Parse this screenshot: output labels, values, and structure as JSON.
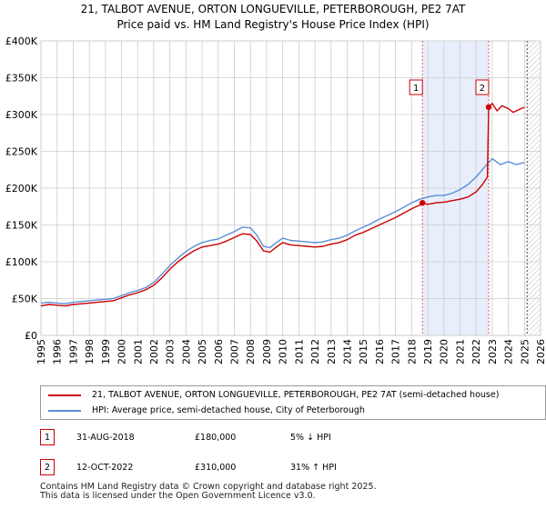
{
  "page_title_line1": "21, TALBOT AVENUE, ORTON LONGUEVILLE, PETERBOROUGH, PE2 7AT",
  "page_title_line2": "Price paid vs. HM Land Registry's House Price Index (HPI)",
  "colors": {
    "property_line": "#cc0000",
    "hpi_line": "#5b8ed6",
    "shade": "#e8eefb",
    "marker_border": "#cc0000",
    "grid": "#cccccc"
  },
  "chart_data": {
    "type": "line",
    "title": "21, TALBOT AVENUE, ORTON LONGUEVILLE, PETERBOROUGH, PE2 7AT — Price paid vs. HM Land Registry's House Price Index (HPI)",
    "xlim": [
      1995,
      2026
    ],
    "ylim": [
      0,
      400000
    ],
    "yticks": [
      0,
      50000,
      100000,
      150000,
      200000,
      250000,
      300000,
      350000,
      400000
    ],
    "ytick_labels": [
      "£0",
      "£50K",
      "£100K",
      "£150K",
      "£200K",
      "£250K",
      "£300K",
      "£350K",
      "£400K"
    ],
    "xtick_labels": [
      "1995",
      "1996",
      "1997",
      "1998",
      "1999",
      "2000",
      "2001",
      "2002",
      "2003",
      "2004",
      "2005",
      "2006",
      "2007",
      "2008",
      "2009",
      "2010",
      "2011",
      "2012",
      "2013",
      "2014",
      "2015",
      "2016",
      "2017",
      "2018",
      "2019",
      "2020",
      "2021",
      "2022",
      "2023",
      "2024",
      "2025",
      "2026"
    ],
    "shaded_period": [
      2018.67,
      2022.78
    ],
    "future_hatch_start": 2025.0,
    "series": [
      {
        "name": "21, TALBOT AVENUE, ORTON LONGUEVILLE, PETERBOROUGH, PE2 7AT (semi-detached house)",
        "x": [
          1995.0,
          1995.5,
          1996.0,
          1996.5,
          1997.0,
          1997.5,
          1998.0,
          1998.5,
          1999.0,
          1999.5,
          2000.0,
          2000.5,
          2001.0,
          2001.5,
          2002.0,
          2002.5,
          2003.0,
          2003.5,
          2004.0,
          2004.5,
          2005.0,
          2005.5,
          2006.0,
          2006.5,
          2007.0,
          2007.5,
          2008.0,
          2008.4,
          2008.8,
          2009.2,
          2009.6,
          2010.0,
          2010.5,
          2011.0,
          2011.5,
          2012.0,
          2012.5,
          2013.0,
          2013.5,
          2014.0,
          2014.5,
          2015.0,
          2015.5,
          2016.0,
          2016.5,
          2017.0,
          2017.5,
          2018.0,
          2018.5,
          2018.67,
          2019.0,
          2019.5,
          2020.0,
          2020.5,
          2021.0,
          2021.5,
          2022.0,
          2022.4,
          2022.7,
          2022.78,
          2023.0,
          2023.3,
          2023.6,
          2024.0,
          2024.3,
          2024.6,
          2025.0
        ],
        "values": [
          40000,
          42000,
          41000,
          40000,
          42000,
          43000,
          44000,
          45000,
          46000,
          47000,
          51000,
          55000,
          58000,
          62000,
          68000,
          78000,
          90000,
          100000,
          108000,
          115000,
          120000,
          122000,
          124000,
          128000,
          133000,
          138000,
          137000,
          128000,
          115000,
          113000,
          120000,
          126000,
          123000,
          122000,
          121000,
          120000,
          121000,
          124000,
          126000,
          130000,
          136000,
          140000,
          145000,
          150000,
          155000,
          160000,
          166000,
          172000,
          177000,
          180000,
          178000,
          180000,
          181000,
          183000,
          185000,
          188000,
          195000,
          205000,
          215000,
          310000,
          315000,
          305000,
          312000,
          308000,
          303000,
          306000,
          310000
        ]
      },
      {
        "name": "HPI: Average price, semi-detached house, City of Peterborough",
        "x": [
          1995.0,
          1995.5,
          1996.0,
          1996.5,
          1997.0,
          1997.5,
          1998.0,
          1998.5,
          1999.0,
          1999.5,
          2000.0,
          2000.5,
          2001.0,
          2001.5,
          2002.0,
          2002.5,
          2003.0,
          2003.5,
          2004.0,
          2004.5,
          2005.0,
          2005.5,
          2006.0,
          2006.5,
          2007.0,
          2007.5,
          2008.0,
          2008.4,
          2008.8,
          2009.2,
          2009.6,
          2010.0,
          2010.5,
          2011.0,
          2011.5,
          2012.0,
          2012.5,
          2013.0,
          2013.5,
          2014.0,
          2014.5,
          2015.0,
          2015.5,
          2016.0,
          2016.5,
          2017.0,
          2017.5,
          2018.0,
          2018.5,
          2019.0,
          2019.5,
          2020.0,
          2020.5,
          2021.0,
          2021.5,
          2022.0,
          2022.5,
          2023.0,
          2023.5,
          2024.0,
          2024.5,
          2025.0
        ],
        "values": [
          44000,
          45000,
          44000,
          43000,
          45000,
          46000,
          47000,
          48000,
          49000,
          50000,
          54000,
          58000,
          61000,
          65000,
          72000,
          83000,
          95000,
          105000,
          114000,
          121000,
          126000,
          129000,
          131000,
          136000,
          141000,
          147000,
          146000,
          136000,
          121000,
          119000,
          126000,
          132000,
          129000,
          128000,
          127000,
          126000,
          127000,
          130000,
          132000,
          136000,
          142000,
          147000,
          152000,
          158000,
          163000,
          168000,
          174000,
          180000,
          185000,
          188000,
          190000,
          190000,
          193000,
          198000,
          205000,
          215000,
          228000,
          240000,
          232000,
          236000,
          232000,
          235000
        ]
      }
    ],
    "transactions": [
      {
        "id": "1",
        "x": 2018.67,
        "value": 180000,
        "date": "31-AUG-2018",
        "price": "£180,000",
        "hpi": "5% ↓ HPI"
      },
      {
        "id": "2",
        "x": 2022.78,
        "value": 310000,
        "date": "12-OCT-2022",
        "price": "£310,000",
        "hpi": "31% ↑ HPI"
      }
    ],
    "xlabel": "",
    "ylabel": ""
  },
  "legend": {
    "property_label": "21, TALBOT AVENUE, ORTON LONGUEVILLE, PETERBOROUGH, PE2 7AT (semi-detached house)",
    "hpi_label": "HPI: Average price, semi-detached house, City of Peterborough"
  },
  "transactions_table": [
    {
      "id": "1",
      "date": "31-AUG-2018",
      "price": "£180,000",
      "hpi": "5% ↓ HPI"
    },
    {
      "id": "2",
      "date": "12-OCT-2022",
      "price": "£310,000",
      "hpi": "31% ↑ HPI"
    }
  ],
  "footer_line1": "Contains HM Land Registry data © Crown copyright and database right 2025.",
  "footer_line2": "This data is licensed under the Open Government Licence v3.0."
}
